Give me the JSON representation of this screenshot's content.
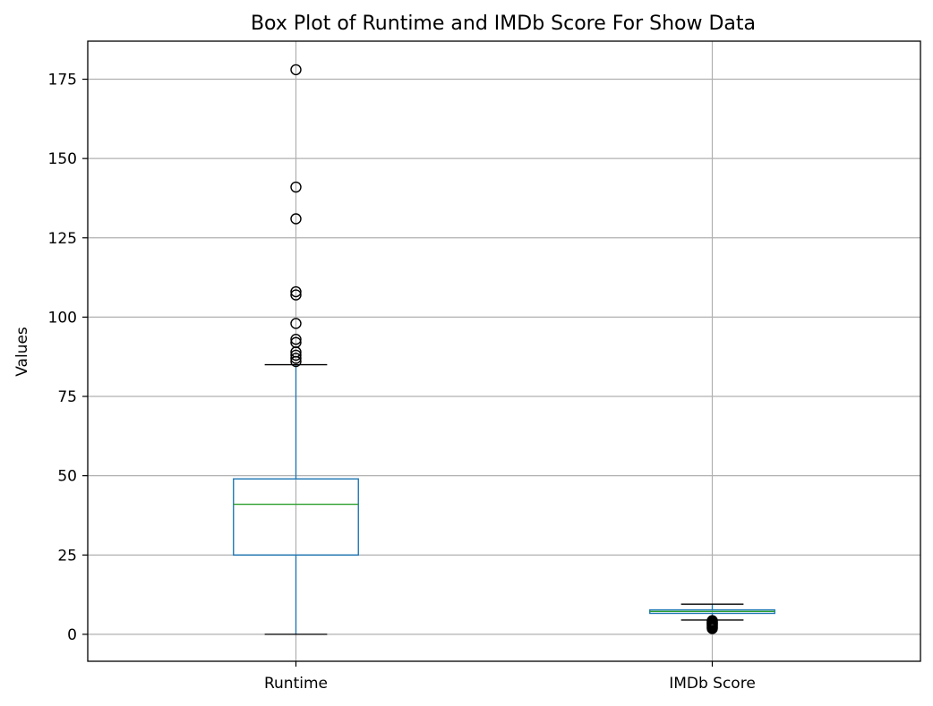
{
  "chart_data": {
    "type": "box",
    "title": "Box Plot of Runtime and IMDb Score For Show Data",
    "xlabel": "",
    "ylabel": "Values",
    "ylim": [
      -8.5,
      187
    ],
    "yticks": [
      0,
      25,
      50,
      75,
      100,
      125,
      150,
      175
    ],
    "grid": true,
    "categories": [
      "Runtime",
      "IMDb Score"
    ],
    "boxes": [
      {
        "category": "Runtime",
        "whisker_low": 0,
        "q1": 25,
        "median": 41,
        "q3": 49,
        "whisker_high": 85,
        "outliers": [
          178,
          141,
          131,
          108,
          107,
          98,
          93,
          92,
          89,
          88,
          87,
          86
        ]
      },
      {
        "category": "IMDb Score",
        "whisker_low": 4.5,
        "q1": 6.6,
        "median": 7.2,
        "q3": 7.7,
        "whisker_high": 9.5,
        "outliers": [
          4.3,
          4.0,
          3.7,
          3.5,
          3.2,
          3.0,
          2.7,
          2.4,
          2.1,
          1.8
        ]
      }
    ],
    "colors": {
      "box": "#1f77b4",
      "median": "#2ca02c",
      "grid": "#b0b0b0",
      "whisker_cap": "#000000",
      "outlier": "#000000"
    }
  }
}
